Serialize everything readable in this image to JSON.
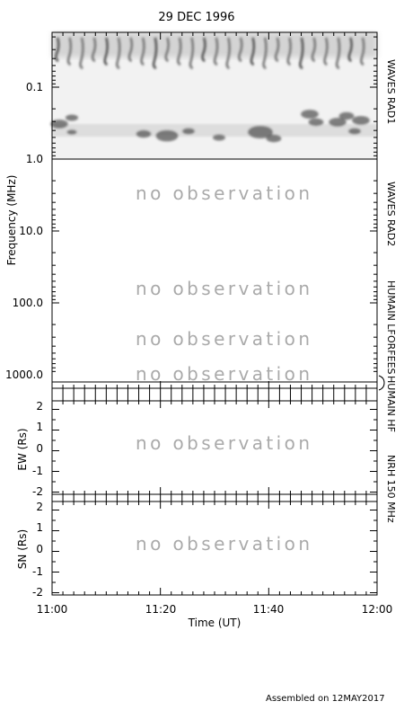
{
  "chart_data": {
    "type": "heatmap",
    "title": "29 DEC 1996",
    "xlabel": "Time (UT)",
    "x_tick_labels": [
      "11:00",
      "11:20",
      "11:40",
      "12:00"
    ],
    "panels": [
      {
        "ylabel": "Frequency (MHz)",
        "y_tick_labels": [
          "0.1",
          "1.0",
          "10.0",
          "100.0",
          "1000.0"
        ],
        "y_scale": "log",
        "y_range": [
          0.02,
          1400
        ],
        "instruments": [
          "WAVES RAD1",
          "WAVES RAD2",
          "HUMAIN LF",
          "ORFEES",
          "HUMAIN HF"
        ],
        "status_messages": [
          "no observation",
          "no observation",
          "no observation",
          "no observation"
        ]
      },
      {
        "ylabel": "EW (Rs)",
        "y_tick_labels": [
          "2",
          "1",
          "0",
          "-1",
          "-2"
        ],
        "y_range": [
          -2.2,
          2.2
        ],
        "status_messages": [
          "no observation"
        ]
      },
      {
        "ylabel": "SN (Rs)",
        "y_tick_labels": [
          "2",
          "1",
          "0",
          "-1",
          "-2"
        ],
        "y_range": [
          -2.2,
          2.2
        ],
        "status_messages": [
          "no observation"
        ]
      }
    ],
    "nrh_label": "NRH 150 MHz"
  },
  "footer": "Assembled on 12MAY2017"
}
